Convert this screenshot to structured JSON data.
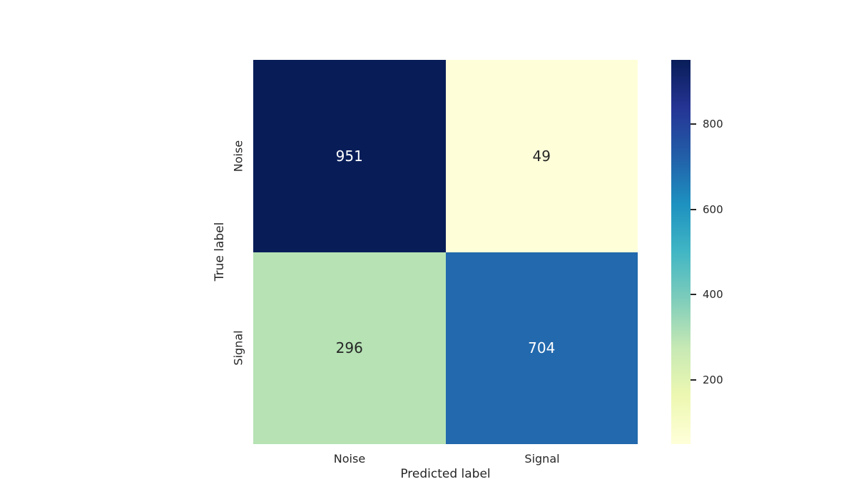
{
  "chart_data": {
    "type": "heatmap",
    "subtype": "confusion-matrix",
    "title": "",
    "xlabel": "Predicted label",
    "ylabel": "True label",
    "x_categories": [
      "Noise",
      "Signal"
    ],
    "y_categories": [
      "Noise",
      "Signal"
    ],
    "matrix": [
      [
        951,
        49
      ],
      [
        296,
        704
      ]
    ],
    "vmin": 49,
    "vmax": 951,
    "colormap": "YlGnBu",
    "colorbar_ticks": [
      800,
      600,
      400,
      200
    ],
    "colormap_stops": [
      "#ffffd9",
      "#edf8b1",
      "#c7e9b4",
      "#7fcdbb",
      "#41b6c4",
      "#1d91c0",
      "#225ea8",
      "#253494",
      "#081d58"
    ],
    "cell_colors": [
      [
        "#081d58",
        "#feffd9"
      ],
      [
        "#b6e2b4",
        "#2269ad"
      ]
    ],
    "cell_text_colors": [
      [
        "#ffffff",
        "#262626"
      ],
      [
        "#262626",
        "#ffffff"
      ]
    ],
    "grid": false,
    "legend_position": "colorbar-right",
    "background_color": "#ffffff",
    "text_color": "#262626"
  }
}
